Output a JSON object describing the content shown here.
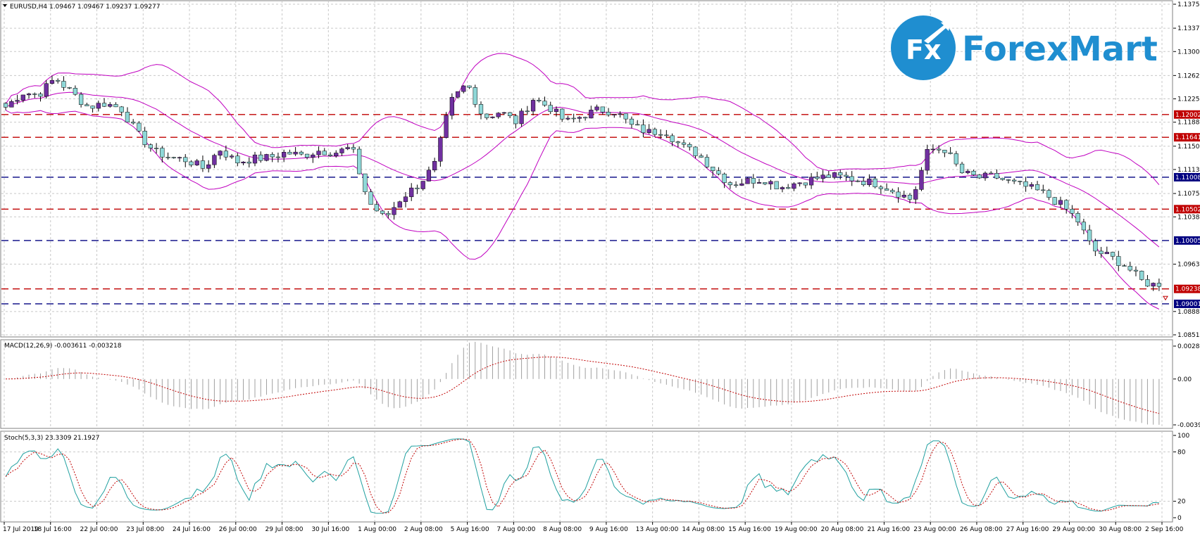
{
  "chart_data": [
    {
      "type": "candlestick",
      "header": "EURUSD,H4  1.09467 1.09467 1.09237 1.09277",
      "symbol": "EURUSD",
      "timeframe": "H4",
      "ylim": [
        1.0851,
        1.1375
      ],
      "grid": true,
      "y_ticks": [
        "1.13750",
        "1.13370",
        "1.13000",
        "1.12620",
        "1.12250",
        "1.11880",
        "1.11500",
        "1.11130",
        "1.10750",
        "1.10380",
        "1.09630",
        "1.08880",
        "1.08510"
      ],
      "x_ticks": [
        "17 Jul 2019",
        "18 Jul 16:00",
        "22 Jul 00:00",
        "23 Jul 08:00",
        "24 Jul 16:00",
        "26 Jul 00:00",
        "29 Jul 08:00",
        "30 Jul 16:00",
        "1 Aug 00:00",
        "2 Aug 08:00",
        "5 Aug 16:00",
        "7 Aug 00:00",
        "8 Aug 08:00",
        "9 Aug 16:00",
        "13 Aug 00:00",
        "14 Aug 08:00",
        "15 Aug 16:00",
        "19 Aug 00:00",
        "20 Aug 08:00",
        "21 Aug 16:00",
        "23 Aug 00:00",
        "26 Aug 08:00",
        "27 Aug 16:00",
        "29 Aug 00:00",
        "30 Aug 08:00",
        "2 Sep 16:00"
      ],
      "price_levels": [
        {
          "label": "1.12002",
          "value": 1.12002,
          "color": "#c00000"
        },
        {
          "label": "1.11641",
          "value": 1.11641,
          "color": "#c00000"
        },
        {
          "label": "1.11008",
          "value": 1.11008,
          "color": "#000080"
        },
        {
          "label": "1.10502",
          "value": 1.10502,
          "color": "#c00000"
        },
        {
          "label": "1.10005",
          "value": 1.10005,
          "color": "#000080"
        },
        {
          "label": "1.09238",
          "value": 1.09238,
          "color": "#c00000"
        },
        {
          "label": "1.09001",
          "value": 1.09001,
          "color": "#000080"
        }
      ],
      "close_anchors": [
        1.1212,
        1.1235,
        1.1232,
        1.1258,
        1.1235,
        1.1212,
        1.1218,
        1.121,
        1.117,
        1.1142,
        1.1132,
        1.1128,
        1.1115,
        1.1145,
        1.1125,
        1.113,
        1.1132,
        1.114,
        1.1135,
        1.1143,
        1.114,
        1.1148,
        1.1062,
        1.1035,
        1.1068,
        1.1088,
        1.1118,
        1.122,
        1.125,
        1.1195,
        1.1205,
        1.1188,
        1.1225,
        1.1212,
        1.1188,
        1.1198,
        1.1208,
        1.1205,
        1.1182,
        1.1172,
        1.1175,
        1.115,
        1.1138,
        1.1112,
        1.109,
        1.1095,
        1.1098,
        1.1085,
        1.1092,
        1.1098,
        1.1103,
        1.11,
        1.1095,
        1.109,
        1.1078,
        1.1065,
        1.1145,
        1.1145,
        1.1108,
        1.11,
        1.1102,
        1.1092,
        1.1085,
        1.1075,
        1.1058,
        1.1035,
        1.0985,
        1.0975,
        1.096,
        1.0935,
        1.0928
      ],
      "colors": {
        "bull": "#7030a0",
        "bear": "#8fd8d8",
        "wick": "#000000",
        "band": "#c000c0",
        "grid": "#c8c8c8"
      }
    },
    {
      "type": "histogram",
      "header": "MACD(12,26,9) -0.003611 -0.003218",
      "y_ticks": [
        "0.002811",
        "0.00",
        "-0.003916"
      ],
      "ylim": [
        -0.003916,
        0.002811
      ],
      "signal_color": "#c00000"
    },
    {
      "type": "line",
      "header": "Stoch(5,3,3) 23.3309 21.1927",
      "y_ticks": [
        "100",
        "80",
        "20",
        "0"
      ],
      "ylim": [
        0,
        100
      ],
      "main_color": "#20a0a0",
      "signal_color": "#c00000"
    }
  ],
  "logo": {
    "mark": "Fx",
    "name": "ForexMart",
    "color": "#1f8ed0"
  }
}
